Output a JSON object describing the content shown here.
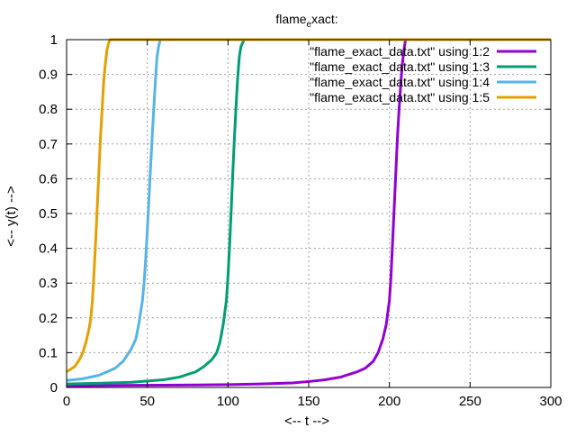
{
  "chart_data": {
    "type": "line",
    "title": "flame_exact:",
    "title_main": "flame",
    "title_sub": "e",
    "title_rest": "xact:",
    "xlabel": "<-- t -->",
    "ylabel": "<-- y(t) -->",
    "xlim": [
      0,
      300
    ],
    "ylim": [
      0,
      1
    ],
    "grid": true,
    "legend_position": "top-right",
    "x_ticks": [
      "0",
      "50",
      "100",
      "150",
      "200",
      "250",
      "300"
    ],
    "y_ticks": [
      "0",
      "0.1",
      "0.2",
      "0.3",
      "0.4",
      "0.5",
      "0.6",
      "0.7",
      "0.8",
      "0.9",
      "1"
    ],
    "series": [
      {
        "name": "\"flame_exact_data.txt\" using 1:2",
        "color": "#9400d3",
        "x": [
          0,
          20,
          40,
          60,
          80,
          100,
          120,
          140,
          150,
          160,
          170,
          180,
          185,
          190,
          193,
          196,
          198,
          200,
          201,
          202,
          203,
          204,
          205,
          206,
          207,
          208,
          209,
          210,
          300
        ],
        "y": [
          0.005,
          0.0055,
          0.006,
          0.0065,
          0.007,
          0.008,
          0.01,
          0.013,
          0.017,
          0.022,
          0.03,
          0.045,
          0.055,
          0.075,
          0.1,
          0.14,
          0.18,
          0.25,
          0.32,
          0.42,
          0.52,
          0.62,
          0.72,
          0.8,
          0.87,
          0.93,
          0.97,
          1.0,
          1.0
        ]
      },
      {
        "name": "\"flame_exact_data.txt\" using 1:3",
        "color": "#009e73",
        "x": [
          0,
          20,
          40,
          60,
          70,
          80,
          85,
          90,
          93,
          95,
          97,
          99,
          100,
          101,
          102,
          103,
          104,
          105,
          106,
          107,
          108,
          110,
          300
        ],
        "y": [
          0.01,
          0.012,
          0.015,
          0.022,
          0.03,
          0.045,
          0.06,
          0.08,
          0.1,
          0.13,
          0.18,
          0.25,
          0.32,
          0.41,
          0.51,
          0.62,
          0.72,
          0.81,
          0.89,
          0.95,
          0.98,
          1.0,
          1.0
        ]
      },
      {
        "name": "\"flame_exact_data.txt\" using 1:4",
        "color": "#56b4e9",
        "x": [
          0,
          10,
          20,
          30,
          35,
          40,
          43,
          45,
          47,
          48,
          49,
          50,
          51,
          52,
          53,
          54,
          55,
          56,
          57,
          58,
          300
        ],
        "y": [
          0.02,
          0.025,
          0.035,
          0.055,
          0.075,
          0.11,
          0.14,
          0.19,
          0.25,
          0.3,
          0.37,
          0.45,
          0.54,
          0.63,
          0.72,
          0.8,
          0.88,
          0.95,
          0.98,
          1.0,
          1.0
        ]
      },
      {
        "name": "\"flame_exact_data.txt\" using 1:5",
        "color": "#e69f00",
        "x": [
          0,
          5,
          8,
          10,
          12,
          14,
          15,
          16,
          17,
          18,
          19,
          20,
          21,
          22,
          23,
          24,
          25,
          26,
          27,
          28,
          300
        ],
        "y": [
          0.045,
          0.06,
          0.08,
          0.1,
          0.13,
          0.17,
          0.2,
          0.25,
          0.33,
          0.42,
          0.52,
          0.62,
          0.72,
          0.8,
          0.88,
          0.93,
          0.97,
          0.99,
          1.0,
          1.0,
          1.0
        ]
      }
    ]
  }
}
